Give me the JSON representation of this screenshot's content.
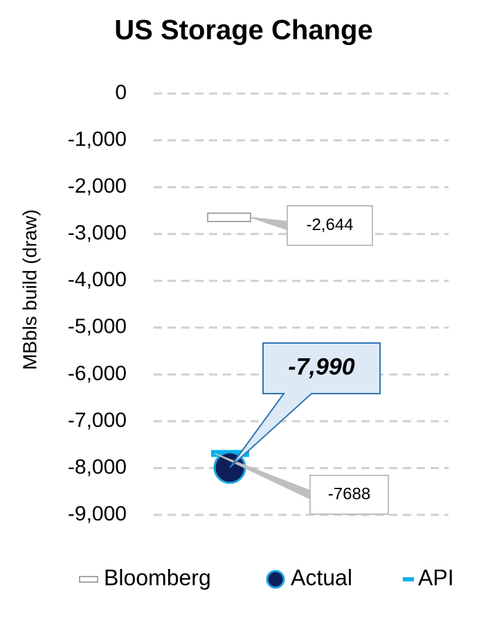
{
  "chart_data": {
    "type": "point",
    "title": "US Storage Change",
    "y_label": "MBbls build (draw)",
    "categories": [
      null
    ],
    "series": [
      {
        "name": "Bloomberg",
        "marker": "rect",
        "color": "#ffffff",
        "values": [
          -2644
        ],
        "value_labels": [
          "-2,644"
        ]
      },
      {
        "name": "Actual",
        "marker": "circle",
        "color": "#0c1f5a",
        "values": [
          -7990
        ],
        "value_labels": [
          "-7,990"
        ]
      },
      {
        "name": "API",
        "marker": "dash",
        "color": "#00b0f0",
        "values": [
          -7688
        ],
        "value_labels": [
          "-7688"
        ]
      }
    ],
    "ylim": [
      -9000,
      0
    ],
    "yticks": [
      0,
      {
        "value": -1000,
        "label": "-1,000"
      },
      {
        "value": -2000,
        "label": "-2,000"
      },
      {
        "value": -3000,
        "label": "-3,000"
      },
      {
        "value": -4000,
        "label": "-4,000"
      },
      {
        "value": -5000,
        "label": "-5,000"
      },
      {
        "value": -6000,
        "label": "-6,000"
      },
      {
        "value": -7000,
        "label": "-7,000"
      },
      {
        "value": -8000,
        "label": "-8,000"
      },
      {
        "value": -9000,
        "label": "-9,000"
      }
    ],
    "grid": true,
    "legend": "bottom"
  }
}
